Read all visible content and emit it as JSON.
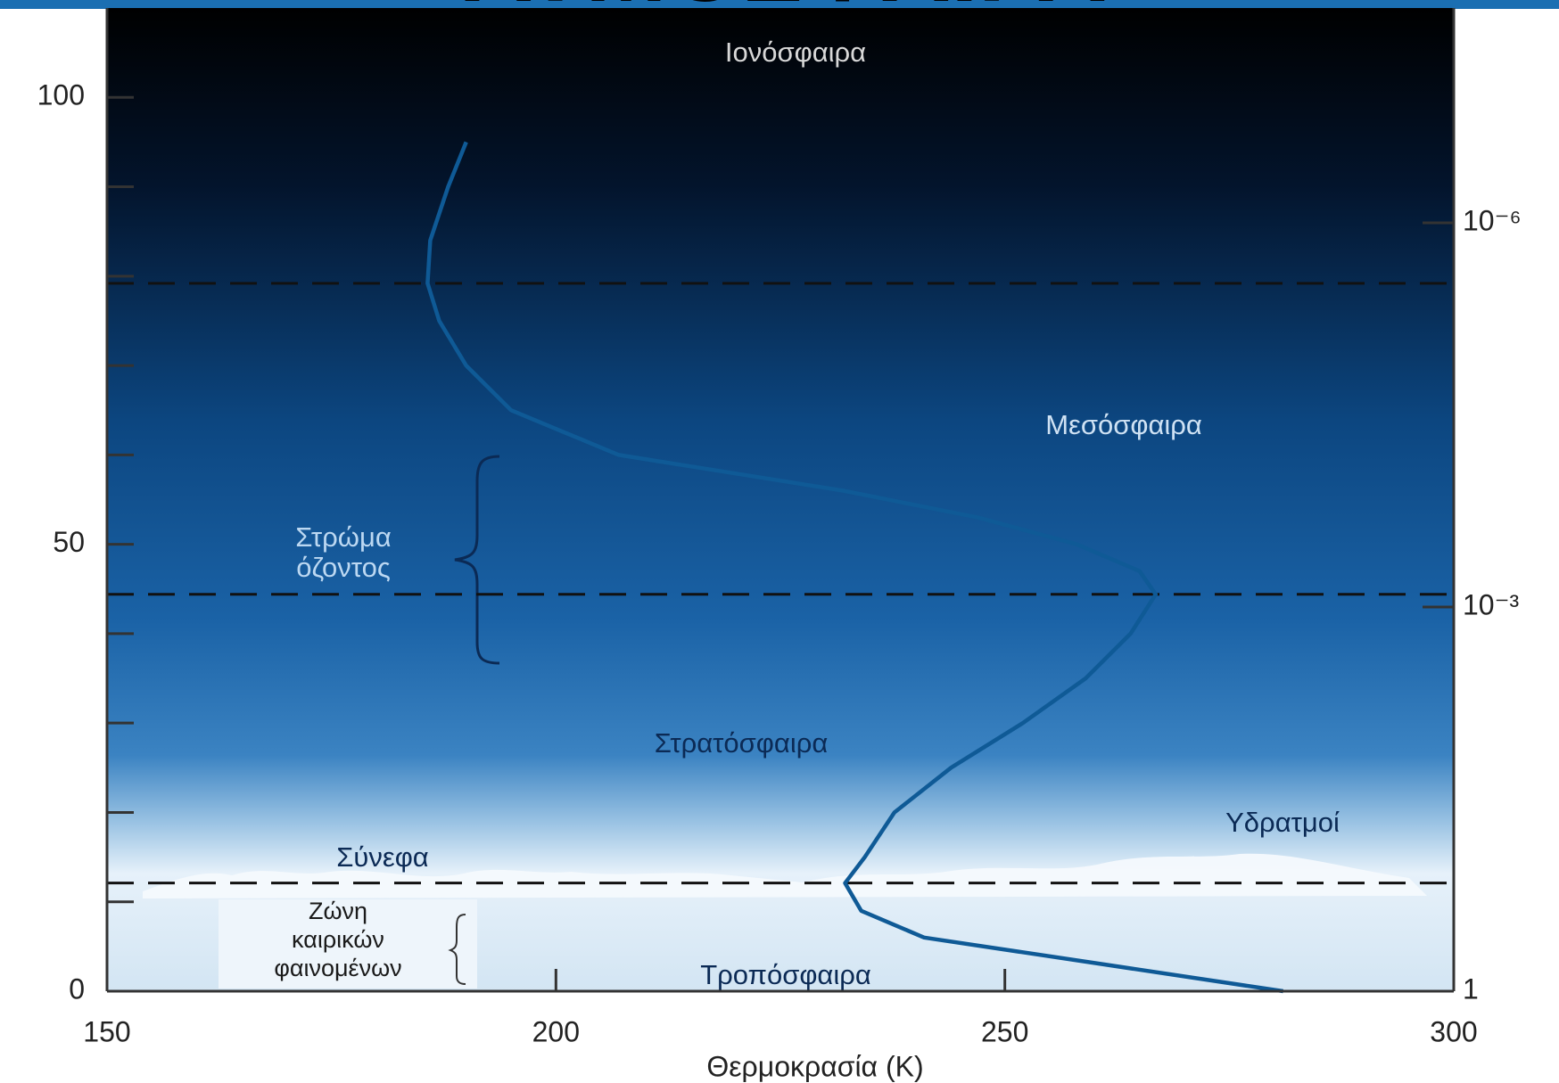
{
  "chart_data": {
    "type": "line",
    "title": "ΑΤΜΟΣΦΑΙΡΑ",
    "x_label": "Θερμοκρασία (K)",
    "x": [
      281,
      261,
      241,
      234,
      232.2,
      234.4,
      237.7,
      244,
      252,
      259,
      264,
      266.8,
      265,
      258,
      247,
      232,
      207,
      195,
      190,
      187,
      185.7,
      186,
      188,
      190
    ],
    "values": [
      0,
      3,
      6,
      9,
      12.1,
      15,
      20,
      25,
      30,
      35,
      40,
      44.4,
      47,
      50,
      53,
      56,
      60,
      65,
      70,
      75,
      79.2,
      84,
      90,
      95
    ],
    "color": "#0f5a96",
    "xlim": [
      150,
      300
    ],
    "xticks": [
      150,
      200,
      250,
      300
    ],
    "ylim": [
      0,
      110
    ],
    "yticks": [
      0,
      50,
      100
    ],
    "yminorticks": [
      10,
      20,
      30,
      40,
      60,
      70,
      80,
      90
    ],
    "y2lim": [
      1,
      2.1e-08
    ],
    "y2log": true,
    "y2ticks": [
      {
        "value": 1e-06,
        "label": "10⁻⁶"
      },
      {
        "value": 0.001,
        "label": "10⁻³"
      },
      1
    ],
    "layer_boundaries": [
      79.2,
      44.4,
      12.1
    ],
    "annotations": [
      [
        "Ιονόσφαιρα"
      ],
      [
        "Μεσόσφαιρα"
      ],
      [
        "Στρώμα",
        "όζοντος"
      ],
      [
        "Στρατόσφαιρα"
      ],
      [
        "Υδρατμοί"
      ],
      [
        "Σύνεφα"
      ],
      [
        "Ζώνη",
        "καιρικών",
        "φαινομένων"
      ],
      [
        "Τροπόσφαιρα"
      ]
    ]
  }
}
